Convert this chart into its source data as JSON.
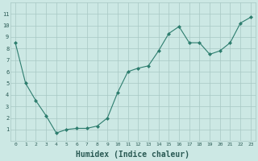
{
  "x": [
    0,
    1,
    2,
    3,
    4,
    5,
    6,
    7,
    8,
    9,
    10,
    11,
    12,
    13,
    14,
    15,
    16,
    17,
    18,
    19,
    20,
    21,
    22,
    23
  ],
  "y": [
    8.5,
    5.0,
    3.5,
    2.2,
    0.7,
    1.0,
    1.1,
    1.1,
    1.3,
    2.0,
    4.2,
    6.0,
    6.3,
    6.5,
    7.8,
    9.3,
    9.9,
    8.5,
    8.5,
    7.5,
    7.8,
    8.5,
    10.2,
    10.7
  ],
  "line_color": "#2d7d6e",
  "marker": "D",
  "marker_size": 2.0,
  "bg_color": "#cce8e4",
  "grid_color": "#a8c8c4",
  "xlabel": "Humidex (Indice chaleur)",
  "xlabel_fontsize": 7,
  "tick_label_color": "#2a5a54",
  "ylim": [
    0,
    12
  ],
  "xlim": [
    -0.5,
    23.5
  ],
  "yticks": [
    1,
    2,
    3,
    4,
    5,
    6,
    7,
    8,
    9,
    10,
    11
  ],
  "xticks": [
    0,
    1,
    2,
    3,
    4,
    5,
    6,
    7,
    8,
    9,
    10,
    11,
    12,
    13,
    14,
    15,
    16,
    17,
    18,
    19,
    20,
    21,
    22,
    23
  ]
}
